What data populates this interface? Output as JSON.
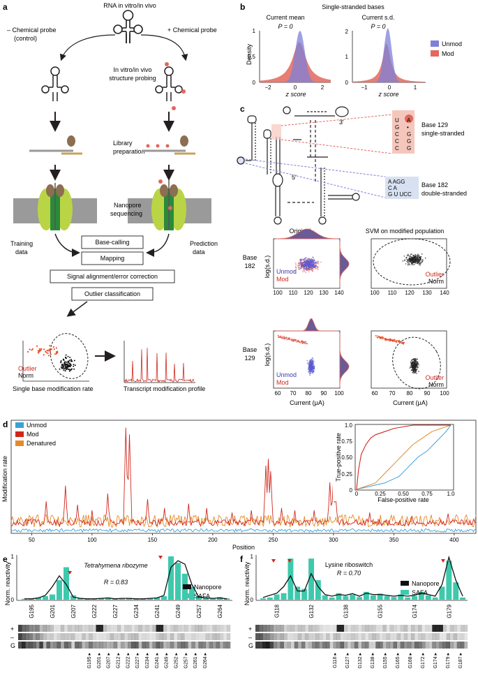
{
  "panel_labels": {
    "a": "a",
    "b": "b",
    "c": "c",
    "d": "d",
    "e": "e",
    "f": "f"
  },
  "panel_a": {
    "top_label": "RNA in vitro/in vivo",
    "minus_probe": "– Chemical probe",
    "minus_probe_sub": "(control)",
    "plus_probe": "+ Chemical probe",
    "probing_1": "In vitro/in vivo",
    "probing_2": "structure probing",
    "library": "Library",
    "library_2": "preparation",
    "nanopore_1": "Nanopore",
    "nanopore_2": "sequencing",
    "training_1": "Training",
    "training_2": "data",
    "prediction_1": "Prediction",
    "prediction_2": "data",
    "steps": [
      "Base-calling",
      "Mapping",
      "Signal alignment/error correction",
      "Outlier classification"
    ],
    "outlier": "Outlier",
    "norm": "Norm",
    "caption_left": "Single base modification rate",
    "caption_right": "Transcript modification profile"
  },
  "panel_b": {
    "title": "Single-stranded bases",
    "left_title": "Current mean",
    "right_title": "Current s.d.",
    "pvalue": "P = 0",
    "ylabel": "Density",
    "xlabel": "z score",
    "legend": [
      "Unmod",
      "Mod"
    ],
    "colors": {
      "unmod": "#7d80d8",
      "mod": "#e3675c"
    },
    "left_xticks": [
      "−2",
      "0",
      "2"
    ],
    "left_yticks": [
      "0",
      "0.5",
      "1"
    ],
    "right_xticks": [
      "−1",
      "0",
      "1"
    ],
    "right_yticks": [
      "0",
      "1",
      "2"
    ]
  },
  "panel_c": {
    "base129_label": "Base 129",
    "base129_sub": "single-stranded",
    "base182_label": "Base 182",
    "base182_sub": "double-stranded",
    "prime3": "3′",
    "prime5": "5′",
    "ss_seq_left": [
      "U",
      "G",
      "C",
      "C",
      "C"
    ],
    "ss_seq_right": [
      "A",
      "•",
      "G",
      "G",
      "G"
    ],
    "ds_seq_top": "A  AGG",
    "ds_seq_mid": "C     A",
    "ds_seq_bot": "G U  UCC",
    "original": "Original",
    "svm": "SVM on modified population",
    "base182_row": [
      "Base",
      "182"
    ],
    "base129_row": [
      "Base",
      "129"
    ],
    "ylabel": "log(s.d.)",
    "xlabel": "Current (μA)",
    "unmod": "Unmod",
    "mod": "Mod",
    "outlier": "Outlier",
    "norm": "Norm",
    "top_xticks": [
      "100",
      "110",
      "120",
      "130",
      "140"
    ],
    "bottom_xticks": [
      "60",
      "70",
      "80",
      "90",
      "100"
    ]
  },
  "chart_data": [
    {
      "type": "line",
      "panel": "d",
      "xlabel": "Position",
      "ylabel": "Modification rate",
      "xlim": [
        33,
        418
      ],
      "ylim": [
        0,
        1
      ],
      "x_ticks": [
        "50",
        "100",
        "150",
        "200",
        "250",
        "300",
        "350",
        "400"
      ],
      "legend": [
        "Unmod",
        "Mod",
        "Denatured"
      ],
      "series": [
        {
          "name": "Mod",
          "color": "#d0271d",
          "peaks": [
            [
              62,
              0.28
            ],
            [
              78,
              0.42
            ],
            [
              88,
              0.25
            ],
            [
              100,
              0.2
            ],
            [
              113,
              0.35
            ],
            [
              128,
              0.94
            ],
            [
              131,
              0.88
            ],
            [
              146,
              0.3
            ],
            [
              160,
              0.22
            ],
            [
              180,
              0.26
            ],
            [
              195,
              0.22
            ],
            [
              216,
              0.18
            ],
            [
              232,
              0.2
            ],
            [
              244,
              0.6
            ],
            [
              246,
              0.66
            ],
            [
              248,
              0.55
            ],
            [
              257,
              0.22
            ],
            [
              268,
              0.2
            ],
            [
              284,
              0.2
            ],
            [
              297,
              0.45
            ],
            [
              300,
              0.5
            ],
            [
              302,
              0.3
            ],
            [
              330,
              0.18
            ],
            [
              365,
              0.15
            ],
            [
              395,
              0.17
            ],
            [
              416,
              0.12
            ]
          ]
        },
        {
          "name": "Denatured",
          "color": "#e48a2a",
          "baseline": 0.1
        },
        {
          "name": "Unmod",
          "color": "#3aa0d9",
          "baseline": 0.02
        }
      ]
    },
    {
      "type": "line",
      "panel": "d-inset",
      "xlabel": "False-positive rate",
      "ylabel": "True-positive rate",
      "xlim": [
        0,
        1
      ],
      "ylim": [
        0,
        1
      ],
      "x_ticks": [
        "0",
        "0.25",
        "0.50",
        "0.75",
        "1.0"
      ],
      "y_ticks": [
        "0",
        "0.25",
        "0.50",
        "0.75",
        "1.0"
      ],
      "series": [
        {
          "name": "Mod",
          "color": "#d0271d",
          "x": [
            0,
            0.02,
            0.05,
            0.1,
            0.15,
            0.2,
            0.3,
            0.4,
            0.6,
            0.8,
            1.0
          ],
          "y": [
            0,
            0.3,
            0.55,
            0.7,
            0.8,
            0.85,
            0.9,
            0.95,
            1.0,
            1.0,
            1.0
          ]
        },
        {
          "name": "Denatured",
          "color": "#e48a2a",
          "x": [
            0,
            0.2,
            0.3,
            0.4,
            0.5,
            0.6,
            0.7,
            0.8,
            0.9,
            1.0
          ],
          "y": [
            0,
            0.1,
            0.25,
            0.4,
            0.55,
            0.7,
            0.8,
            0.9,
            0.95,
            1.0
          ]
        },
        {
          "name": "Unmod",
          "color": "#3aa0d9",
          "x": [
            0,
            0.3,
            0.45,
            0.55,
            0.65,
            0.75,
            0.85,
            0.95,
            1.0
          ],
          "y": [
            0,
            0.1,
            0.2,
            0.35,
            0.5,
            0.6,
            0.75,
            0.9,
            1.0
          ]
        }
      ]
    },
    {
      "type": "bar",
      "panel": "e",
      "title": "Tetrahymena ribozyme",
      "annotation": "R = 0.83",
      "ylabel": "Norm. reactivity",
      "ylim": [
        0,
        1
      ],
      "legend": [
        "Nanopore",
        "SAFA"
      ],
      "x_ticks": [
        "G195",
        "G201",
        "G207",
        "G222",
        "G227",
        "G234",
        "G241",
        "G249",
        "G257",
        "G264"
      ],
      "gel_labels": [
        "G195",
        "G201",
        "G207",
        "G212",
        "G222",
        "G227",
        "G234",
        "G241",
        "G249",
        "G252",
        "G257",
        "G261",
        "G264"
      ],
      "lane_labels": [
        "+",
        "–",
        "G"
      ],
      "safa_values": [
        0.02,
        0.03,
        0.05,
        0.08,
        0.12,
        0.45,
        0.75,
        0.1,
        0.04,
        0.03,
        0.02,
        0.03,
        0.05,
        0.03,
        0.02,
        0.04,
        0.03,
        0.02,
        0.03,
        0.05,
        0.08,
        1.0,
        0.85,
        0.6,
        0.3,
        0.08,
        0.05,
        0.04,
        0.06,
        0.03
      ],
      "nanopore_values": [
        0.02,
        0.02,
        0.04,
        0.1,
        0.3,
        0.55,
        0.35,
        0.06,
        0.03,
        0.02,
        0.02,
        0.03,
        0.04,
        0.02,
        0.03,
        0.03,
        0.02,
        0.02,
        0.03,
        0.04,
        0.1,
        0.75,
        0.9,
        0.82,
        0.35,
        0.06,
        0.04,
        0.03,
        0.04,
        0.02
      ]
    },
    {
      "type": "bar",
      "panel": "f",
      "title": "Lysine riboswitch",
      "annotation": "R = 0.70",
      "ylabel": "Norm. reactivity",
      "ylim": [
        0,
        1
      ],
      "legend": [
        "Nanopore",
        "SAFA"
      ],
      "x_ticks": [
        "G118",
        "G132",
        "G138",
        "G155",
        "G174",
        "G179"
      ],
      "gel_labels": [
        "G116",
        "G127",
        "G132",
        "G138",
        "G155",
        "G165",
        "G168",
        "G172",
        "G174",
        "G179",
        "G187"
      ],
      "lane_labels": [
        "+",
        "–",
        "G"
      ],
      "safa_values": [
        0.03,
        0.05,
        0.12,
        0.15,
        0.95,
        0.3,
        0.25,
        0.95,
        0.45,
        0.1,
        0.05,
        0.15,
        0.08,
        0.12,
        0.06,
        0.18,
        0.1,
        0.14,
        0.08,
        0.06,
        0.12,
        0.05,
        0.08,
        0.18,
        0.1,
        0.05,
        0.3,
        0.9,
        0.4,
        0.05
      ],
      "nanopore_values": [
        0.05,
        0.1,
        0.15,
        0.3,
        0.55,
        0.2,
        0.2,
        0.6,
        0.3,
        0.12,
        0.08,
        0.12,
        0.1,
        0.14,
        0.08,
        0.15,
        0.12,
        0.12,
        0.1,
        0.08,
        0.1,
        0.08,
        0.1,
        0.15,
        0.12,
        0.08,
        0.35,
        0.98,
        0.45,
        0.08
      ]
    }
  ]
}
